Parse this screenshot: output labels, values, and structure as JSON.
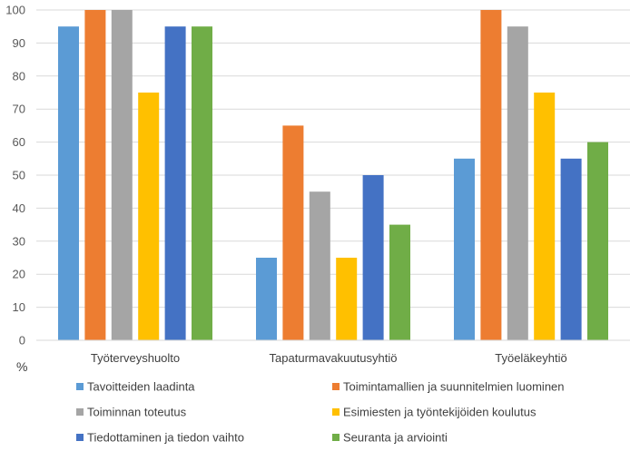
{
  "chart_data": {
    "type": "bar",
    "categories": [
      "Työterveyshuolto",
      "Tapaturmavakuutusyhtiö",
      "Työeläkeyhtiö"
    ],
    "series": [
      {
        "name": "Tavoitteiden laadinta",
        "values": [
          95,
          25,
          55
        ],
        "color": "#5B9BD5"
      },
      {
        "name": "Toimintamallien ja suunnitelmien luominen",
        "values": [
          100,
          65,
          100
        ],
        "color": "#ED7D31"
      },
      {
        "name": "Toiminnan toteutus",
        "values": [
          100,
          45,
          95
        ],
        "color": "#A5A5A5"
      },
      {
        "name": "Esimiesten ja työntekijöiden koulutus",
        "values": [
          75,
          25,
          75
        ],
        "color": "#FFC000"
      },
      {
        "name": "Tiedottaminen ja tiedon vaihto",
        "values": [
          95,
          50,
          55
        ],
        "color": "#4472C4"
      },
      {
        "name": "Seuranta ja arviointi",
        "values": [
          95,
          35,
          60
        ],
        "color": "#70AD47"
      }
    ],
    "ylabel": "%",
    "ylim": [
      0,
      100
    ],
    "yticks": [
      0,
      10,
      20,
      30,
      40,
      50,
      60,
      70,
      80,
      90,
      100
    ],
    "grid": true,
    "legend_position": "bottom"
  }
}
